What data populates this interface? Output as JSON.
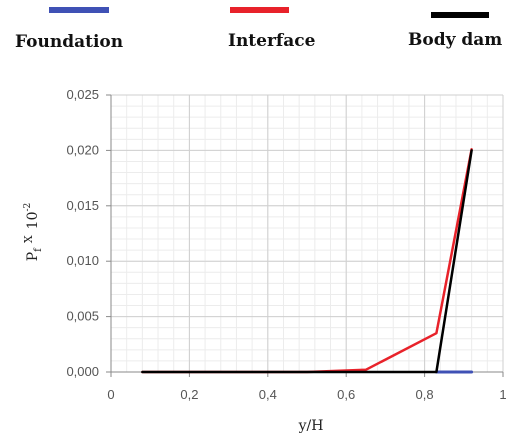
{
  "chart_data": {
    "type": "line",
    "xlabel": "y/H",
    "ylabel": "P",
    "ylabel_sub": "f",
    "ylabel_x": "X",
    "ylabel_pow": "10",
    "ylabel_exp": "-2",
    "xlim": [
      0,
      1
    ],
    "ylim": [
      0,
      0.025
    ],
    "grid": true,
    "legend_position": "top",
    "x_ticks": [
      0,
      0.2,
      0.4,
      0.6,
      0.8,
      1
    ],
    "x_tick_labels": [
      "0",
      "0,2",
      "0,4",
      "0,6",
      "0,8",
      "1"
    ],
    "y_ticks": [
      0,
      0.005,
      0.01,
      0.015,
      0.02,
      0.025
    ],
    "y_tick_labels": [
      "0,000",
      "0,005",
      "0,010",
      "0,015",
      "0,020",
      "0,025"
    ],
    "series": [
      {
        "name": "Foundation",
        "color": "#3f51b5",
        "x": [
          0.83,
          0.92
        ],
        "y": [
          0,
          0
        ]
      },
      {
        "name": "Interface",
        "color": "#e8222a",
        "x": [
          0.08,
          0.5,
          0.65,
          0.83,
          0.92
        ],
        "y": [
          0,
          0,
          0.0002,
          0.0035,
          0.0201
        ]
      },
      {
        "name": "Body dam",
        "color": "#000000",
        "x": [
          0.08,
          0.83,
          0.92
        ],
        "y": [
          0,
          0,
          0.02
        ]
      }
    ]
  }
}
